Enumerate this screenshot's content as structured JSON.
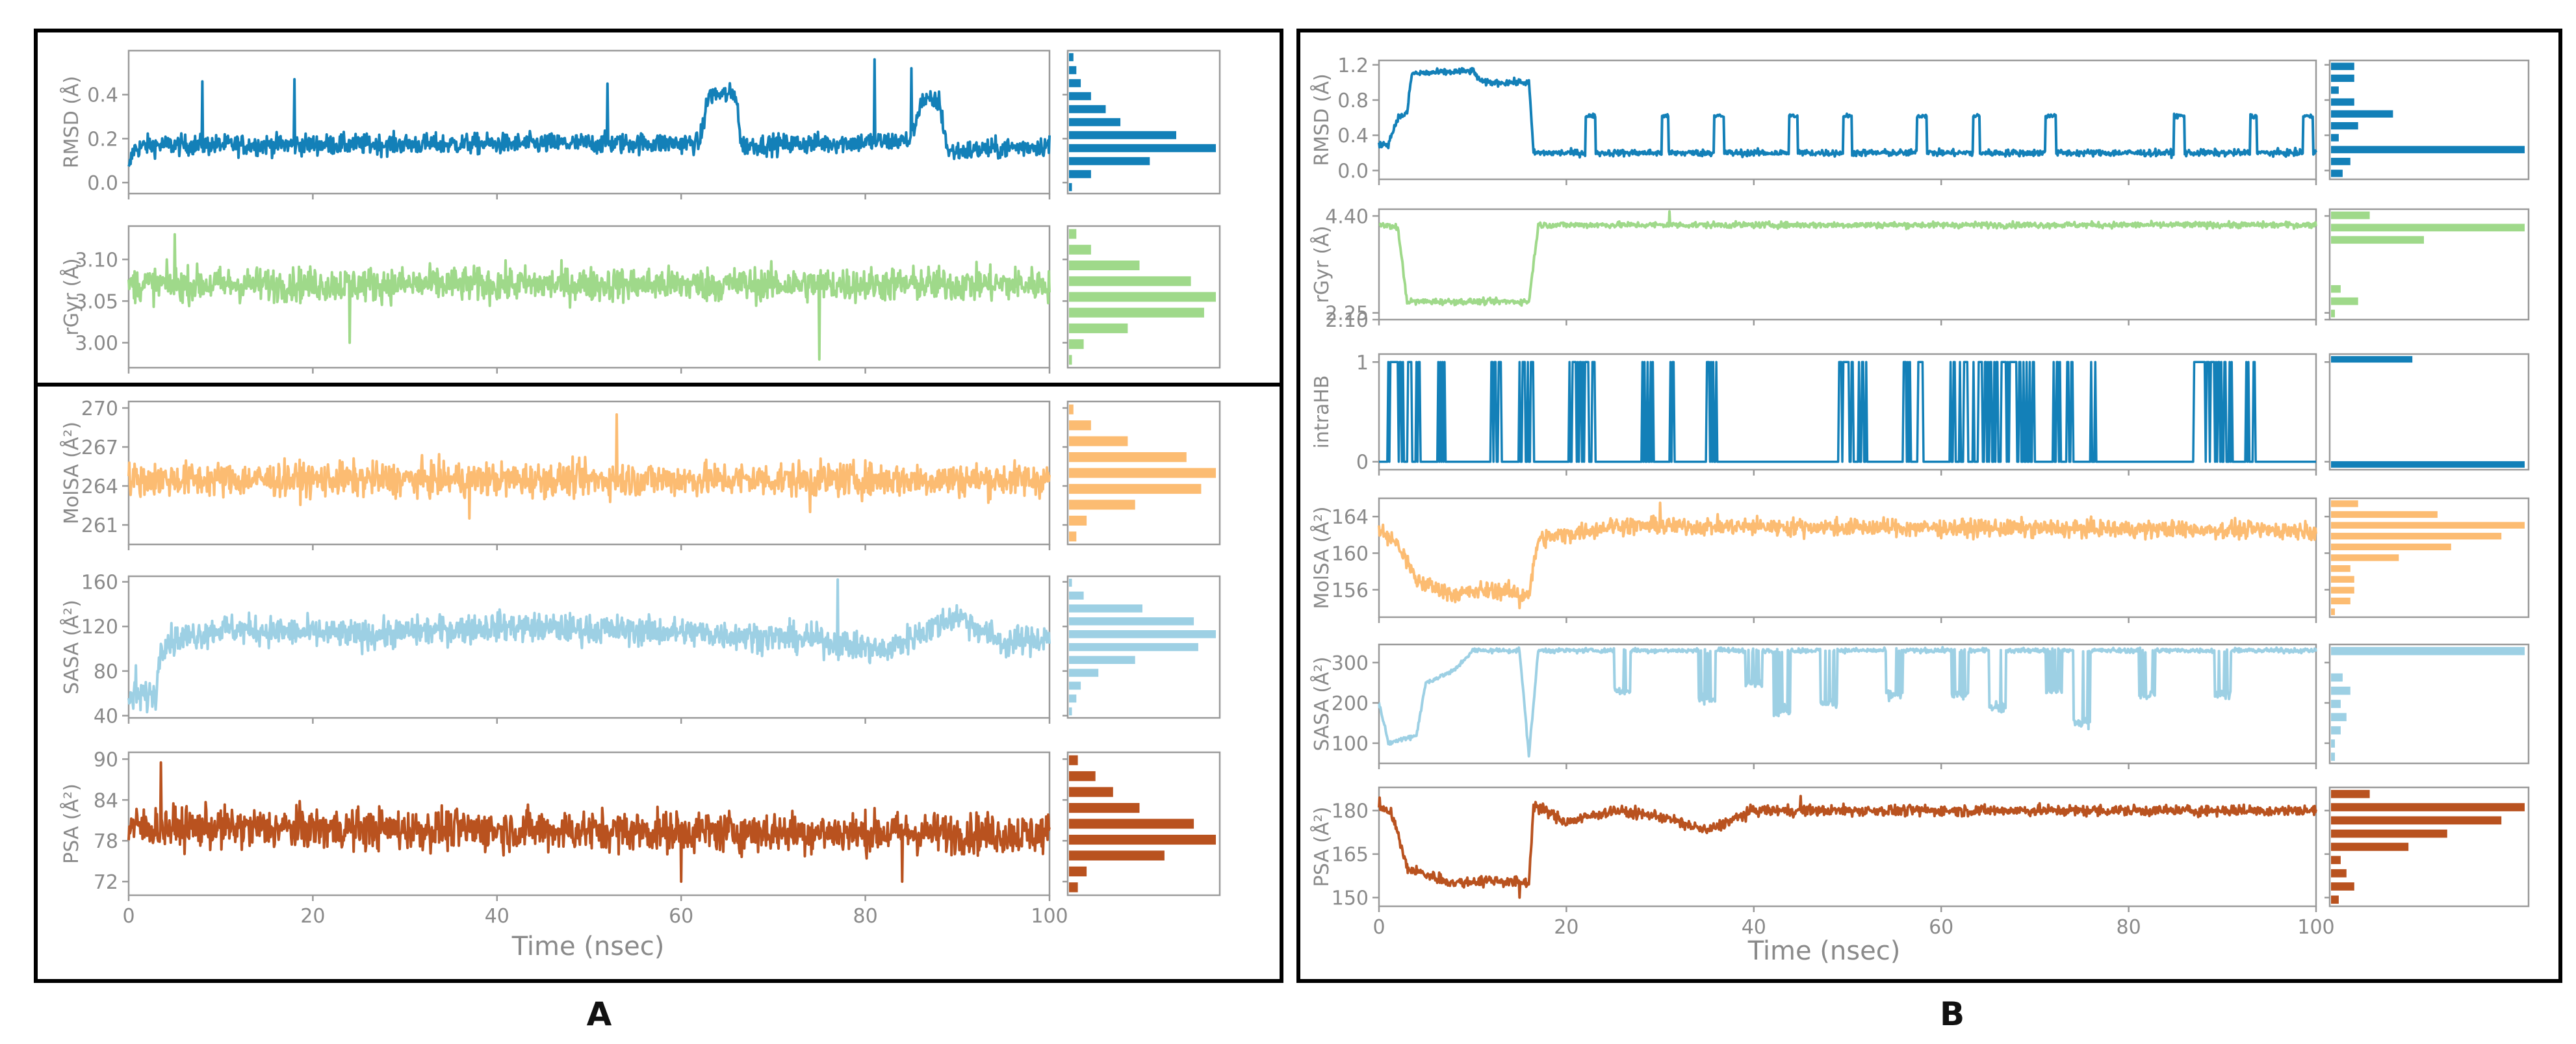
{
  "colors": {
    "dark_blue": "#1380b8",
    "light_green": "#9fd98a",
    "light_orange": "#fcbc72",
    "light_blue": "#9dd0e4",
    "dark_orange": "#b9521f",
    "axis": "#9a9a9a",
    "frame": "#000000"
  },
  "chart_data": [
    {
      "id": "A",
      "type": "line",
      "panel_label": "A",
      "xlabel": "Time (nsec)",
      "xlim": [
        0,
        100
      ],
      "x_ticks": [
        "0",
        "20",
        "40",
        "60",
        "80",
        "100"
      ],
      "subplots": [
        {
          "ylabel": "RMSD (Å)",
          "ylim": [
            -0.05,
            0.6
          ],
          "yticks": [
            0.0,
            0.2,
            0.4
          ],
          "ytick_labels": [
            "0.0",
            "0.2",
            "0.4"
          ],
          "color_key": "dark_blue",
          "series_shape": [
            [
              0,
              0.05
            ],
            [
              0.5,
              0.15
            ],
            [
              2,
              0.17
            ],
            [
              62,
              0.18
            ],
            [
              63,
              0.4
            ],
            [
              66,
              0.4
            ],
            [
              66.5,
              0.17
            ],
            [
              85,
              0.19
            ],
            [
              86,
              0.37
            ],
            [
              88,
              0.37
            ],
            [
              89,
              0.14
            ],
            [
              100,
              0.17
            ]
          ],
          "noise": 0.05,
          "spikes": [
            [
              8,
              0.46
            ],
            [
              18,
              0.47
            ],
            [
              52,
              0.45
            ],
            [
              81,
              0.56
            ],
            [
              85,
              0.52
            ]
          ],
          "hist": [
            0.02,
            0.15,
            0.55,
            1.0,
            0.73,
            0.35,
            0.25,
            0.15,
            0.08,
            0.05,
            0.03
          ]
        },
        {
          "ylabel": "rGyr (Å)",
          "ylim": [
            2.97,
            3.14
          ],
          "yticks": [
            3.0,
            3.05,
            3.1
          ],
          "ytick_labels": [
            "3.00",
            "3.05",
            "3.10"
          ],
          "color_key": "light_green",
          "series_shape": [
            [
              0,
              3.07
            ],
            [
              100,
              3.07
            ]
          ],
          "noise": 0.022,
          "spikes": [
            [
              5,
              3.13
            ],
            [
              75,
              2.98
            ],
            [
              24,
              3.0
            ]
          ],
          "hist": [
            0.02,
            0.1,
            0.4,
            0.92,
            1.0,
            0.83,
            0.48,
            0.15,
            0.05
          ]
        }
      ],
      "subplots_lower": [
        {
          "ylabel": "MolSA (Å²)",
          "ylim": [
            259.5,
            270.5
          ],
          "yticks": [
            261,
            264,
            267,
            270
          ],
          "ytick_labels": [
            "261",
            "264",
            "267",
            "270"
          ],
          "color_key": "light_orange",
          "series_shape": [
            [
              0,
              264.5
            ],
            [
              100,
              264.5
            ]
          ],
          "noise": 1.4,
          "spikes": [
            [
              53,
              269.5
            ],
            [
              74,
              262
            ],
            [
              37,
              261.5
            ]
          ],
          "hist": [
            0.05,
            0.12,
            0.45,
            0.9,
            1.0,
            0.8,
            0.4,
            0.15,
            0.03
          ]
        },
        {
          "ylabel": "SASA (Å²)",
          "ylim": [
            38,
            165
          ],
          "yticks": [
            40,
            80,
            120,
            160
          ],
          "ytick_labels": [
            "40",
            "80",
            "120",
            "160"
          ],
          "color_key": "light_blue",
          "series_shape": [
            [
              0,
              55
            ],
            [
              3,
              60
            ],
            [
              3.5,
              105
            ],
            [
              10,
              118
            ],
            [
              25,
              112
            ],
            [
              40,
              120
            ],
            [
              60,
              115
            ],
            [
              75,
              108
            ],
            [
              82,
              98
            ],
            [
              90,
              130
            ],
            [
              95,
              105
            ],
            [
              100,
              110
            ]
          ],
          "noise": 14,
          "spikes": [
            [
              77,
              162
            ],
            [
              0.8,
              85
            ]
          ],
          "hist": [
            0.02,
            0.05,
            0.08,
            0.2,
            0.45,
            0.88,
            1.0,
            0.85,
            0.5,
            0.1,
            0.02
          ]
        },
        {
          "ylabel": "PSA (Å²)",
          "ylim": [
            70,
            91
          ],
          "yticks": [
            72,
            78,
            84,
            90
          ],
          "ytick_labels": [
            "72",
            "78",
            "84",
            "90"
          ],
          "color_key": "dark_orange",
          "series_shape": [
            [
              0,
              80
            ],
            [
              100,
              79
            ]
          ],
          "noise": 3.2,
          "spikes": [
            [
              3.5,
              89.5
            ],
            [
              60,
              72
            ],
            [
              84,
              72
            ]
          ],
          "hist": [
            0.06,
            0.12,
            0.65,
            1.0,
            0.85,
            0.48,
            0.3,
            0.18,
            0.06
          ]
        }
      ]
    },
    {
      "id": "B",
      "type": "line",
      "panel_label": "B",
      "xlabel": "Time (nsec)",
      "xlim": [
        0,
        100
      ],
      "x_ticks": [
        "0",
        "20",
        "40",
        "60",
        "80",
        "100"
      ],
      "subplots": [
        {
          "ylabel": "RMSD (Å)",
          "ylim": [
            -0.1,
            1.25
          ],
          "yticks": [
            0.0,
            0.4,
            0.8,
            1.2
          ],
          "ytick_labels": [
            "0.0",
            "0.4",
            "0.8",
            "1.2"
          ],
          "color_key": "dark_blue",
          "series_shape": [
            [
              0,
              0.3
            ],
            [
              1,
              0.3
            ],
            [
              2,
              0.6
            ],
            [
              3,
              0.65
            ],
            [
              3.5,
              1.1
            ],
            [
              10,
              1.13
            ],
            [
              11,
              1.0
            ],
            [
              16,
              1.0
            ],
            [
              16.5,
              0.2
            ],
            [
              100,
              0.2
            ]
          ],
          "noise": 0.04,
          "steps_to": 0.62,
          "steps_from": 20,
          "hist": [
            0.06,
            0.1,
            1.0,
            0.04,
            0.14,
            0.32,
            0.12,
            0.04,
            0.12,
            0.12
          ]
        },
        {
          "ylabel": "rGyr (Å)",
          "ylim": [
            2.1,
            4.55
          ],
          "yticks": [
            2.1,
            2.25,
            4.4
          ],
          "ytick_labels": [
            "2.10",
            "2.25",
            "4.40"
          ],
          "color_key": "light_green",
          "series_shape": [
            [
              0,
              4.2
            ],
            [
              2,
              4.15
            ],
            [
              3,
              2.5
            ],
            [
              16,
              2.5
            ],
            [
              17,
              4.2
            ],
            [
              100,
              4.2
            ]
          ],
          "noise": 0.07,
          "spikes": [
            [
              31,
              4.5
            ]
          ],
          "hist": [
            0.02,
            0.14,
            0.05,
            0,
            0,
            0,
            0.48,
            1.0,
            0.2
          ]
        },
        {
          "ylabel": "intraHB",
          "ylim": [
            -0.08,
            1.08
          ],
          "yticks": [
            0,
            1
          ],
          "ytick_labels": [
            "0",
            "1"
          ],
          "color_key": "dark_blue",
          "binary": true,
          "binary_bursts": [
            [
              1,
              3.5
            ],
            [
              3.8,
              4.5
            ],
            [
              6,
              7
            ],
            [
              12,
              13
            ],
            [
              15,
              16.5
            ],
            [
              20,
              23
            ],
            [
              28,
              29.5
            ],
            [
              31,
              31.5
            ],
            [
              35,
              36
            ],
            [
              49,
              52
            ],
            [
              56,
              57
            ],
            [
              57.5,
              58
            ],
            [
              61,
              70
            ],
            [
              72,
              74
            ],
            [
              76,
              76.5
            ],
            [
              87,
              91
            ],
            [
              92.5,
              93.5
            ]
          ],
          "hist": [
            1.0,
            0,
            0,
            0,
            0,
            0,
            0,
            0,
            0,
            0,
            0.42
          ]
        },
        {
          "ylabel": "MolSA (Å²)",
          "ylim": [
            153,
            166
          ],
          "yticks": [
            156,
            160,
            164
          ],
          "ytick_labels": [
            "156",
            "160",
            "164"
          ],
          "color_key": "light_orange",
          "series_shape": [
            [
              0,
              162.5
            ],
            [
              2,
              161
            ],
            [
              4,
              157
            ],
            [
              8,
              155.5
            ],
            [
              12,
              156
            ],
            [
              16,
              155.5
            ],
            [
              17,
              161.5
            ],
            [
              25,
              163
            ],
            [
              100,
              162.5
            ]
          ],
          "noise": 1.0,
          "spikes": [
            [
              30,
              165.5
            ],
            [
              15,
              154
            ]
          ],
          "hist": [
            0.02,
            0.1,
            0.12,
            0.12,
            0.1,
            0.35,
            0.62,
            0.88,
            1.0,
            0.55,
            0.14
          ]
        },
        {
          "ylabel": "SASA (Å²)",
          "ylim": [
            50,
            345
          ],
          "yticks": [
            100,
            200,
            300
          ],
          "ytick_labels": [
            "100",
            "200",
            "300"
          ],
          "color_key": "light_blue",
          "series_shape": [
            [
              0,
              200
            ],
            [
              1,
              100
            ],
            [
              4,
              120
            ],
            [
              5,
              250
            ],
            [
              8,
              280
            ],
            [
              10,
              330
            ],
            [
              15,
              330
            ],
            [
              16,
              70
            ],
            [
              17,
              330
            ],
            [
              100,
              330
            ]
          ],
          "noise": 6,
          "dips": [
            [
              26,
              230
            ],
            [
              35,
              210
            ],
            [
              40,
              250
            ],
            [
              43,
              180
            ],
            [
              48,
              200
            ],
            [
              55,
              220
            ],
            [
              62,
              220
            ],
            [
              66,
              190
            ],
            [
              72,
              230
            ],
            [
              75,
              150
            ],
            [
              82,
              220
            ],
            [
              90,
              220
            ]
          ],
          "hist": [
            0.02,
            0.02,
            0.05,
            0.08,
            0.05,
            0.1,
            0.06,
            0,
            1.0
          ]
        },
        {
          "ylabel": "PSA (Å²)",
          "ylim": [
            147,
            188
          ],
          "yticks": [
            150,
            165,
            180
          ],
          "ytick_labels": [
            "150",
            "165",
            "180"
          ],
          "color_key": "dark_orange",
          "series_shape": [
            [
              0,
              182
            ],
            [
              1.5,
              178
            ],
            [
              3,
              160
            ],
            [
              8,
              155
            ],
            [
              12,
              156
            ],
            [
              16,
              155
            ],
            [
              16.5,
              182
            ],
            [
              20,
              176
            ],
            [
              25,
              180
            ],
            [
              30,
              178
            ],
            [
              35,
              173
            ],
            [
              40,
              180
            ],
            [
              100,
              180
            ]
          ],
          "noise": 2.0,
          "spikes": [
            [
              15,
              150
            ],
            [
              45,
              185
            ]
          ],
          "hist": [
            0.04,
            0.12,
            0.08,
            0.05,
            0.4,
            0.6,
            0.88,
            1.0,
            0.2
          ]
        }
      ]
    }
  ]
}
